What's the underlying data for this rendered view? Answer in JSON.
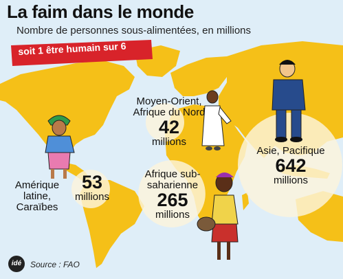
{
  "header": {
    "title": "La faim dans le monde",
    "subtitle": "Nombre de personnes sous-alimentées, en millions",
    "banner": "soit 1 être humain sur 6"
  },
  "footer": {
    "logo": "idé",
    "source": "Source : FAO"
  },
  "colors": {
    "land": "#f5c018",
    "ocean": "#dfeef8",
    "banner": "#d8232a",
    "bubble": "#fdf4dc"
  },
  "chart_data": {
    "type": "bubble",
    "unit": "millions",
    "series": [
      {
        "region": "Amérique latine, Caraïbes",
        "value": 53,
        "label_value": "53",
        "label_unit": "millions",
        "name_lines": [
          "Amérique",
          "latine,",
          "Caraïbes"
        ]
      },
      {
        "region": "Moyen-Orient, Afrique du Nord",
        "value": 42,
        "label_value": "42",
        "label_unit": "millions",
        "name_lines": [
          "Moyen-Orient,",
          "Afrique du Nord"
        ]
      },
      {
        "region": "Afrique subsaharienne",
        "value": 265,
        "label_value": "265",
        "label_unit": "millions",
        "name_lines": [
          "Afrique sub-",
          "saharienne"
        ]
      },
      {
        "region": "Asie, Pacifique",
        "value": 642,
        "label_value": "642",
        "label_unit": "millions",
        "name_lines": [
          "Asie, Pacifique"
        ]
      }
    ]
  }
}
